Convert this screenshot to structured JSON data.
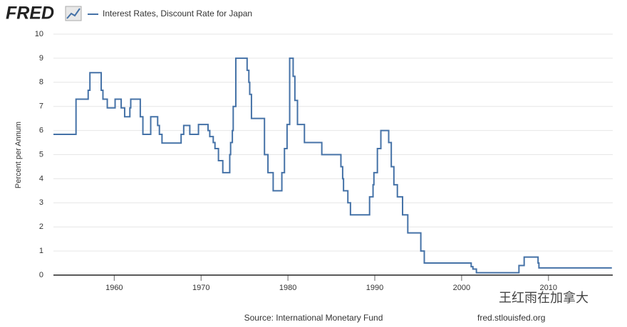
{
  "header": {
    "logo": "FRED"
  },
  "chart_data": {
    "type": "step",
    "title": "Interest Rates, Discount Rate for Japan",
    "y_label": "Percent per Annum",
    "source": "Source: International Monetary Fund",
    "site": "fred.stlouisfed.org",
    "watermark": "王红雨在加拿大",
    "grid": true,
    "xlim": [
      1953,
      2017.4
    ],
    "ylim": [
      0,
      10
    ],
    "xticks": [
      1960,
      1970,
      1980,
      1990,
      2000,
      2010
    ],
    "yticks": [
      0,
      1,
      2,
      3,
      4,
      5,
      6,
      7,
      8,
      9,
      10
    ],
    "series": [
      {
        "name": "Interest Rates, Discount Rate for Japan",
        "color": "#4572a7",
        "x": [
          1953.0,
          1955.6,
          1957.0,
          1957.2,
          1958.5,
          1958.7,
          1959.2,
          1960.1,
          1960.8,
          1961.2,
          1961.8,
          1961.9,
          1963.0,
          1963.3,
          1964.2,
          1965.0,
          1965.2,
          1965.5,
          1967.7,
          1968.0,
          1968.7,
          1969.7,
          1970.8,
          1971.0,
          1971.4,
          1971.6,
          1972.0,
          1972.5,
          1973.3,
          1973.4,
          1973.6,
          1973.7,
          1974.0,
          1975.3,
          1975.5,
          1975.6,
          1975.8,
          1977.3,
          1977.7,
          1978.3,
          1979.3,
          1979.6,
          1979.9,
          1980.2,
          1980.6,
          1980.8,
          1981.1,
          1981.9,
          1983.9,
          1986.1,
          1986.3,
          1986.4,
          1986.9,
          1987.2,
          1989.4,
          1989.8,
          1989.9,
          1990.3,
          1990.7,
          1991.6,
          1991.9,
          1992.2,
          1992.6,
          1993.2,
          1993.8,
          1995.3,
          1995.7,
          2001.1,
          2001.3,
          2001.7,
          2006.6,
          2007.2,
          2008.8,
          2008.9,
          2017.3
        ],
        "values": [
          5.84,
          7.3,
          7.67,
          8.4,
          7.67,
          7.3,
          6.94,
          7.3,
          6.94,
          6.57,
          6.94,
          7.3,
          6.57,
          5.84,
          6.57,
          6.21,
          5.84,
          5.48,
          5.84,
          6.21,
          5.84,
          6.25,
          6.0,
          5.75,
          5.5,
          5.25,
          4.75,
          4.25,
          5.0,
          5.5,
          6.0,
          7.0,
          9.0,
          8.5,
          8.0,
          7.5,
          6.5,
          5.0,
          4.25,
          3.5,
          4.25,
          5.25,
          6.25,
          9.0,
          8.25,
          7.25,
          6.25,
          5.5,
          5.0,
          4.5,
          4.0,
          3.5,
          3.0,
          2.5,
          3.25,
          3.75,
          4.25,
          5.25,
          6.0,
          5.5,
          4.5,
          3.75,
          3.25,
          2.5,
          1.75,
          1.0,
          0.5,
          0.35,
          0.25,
          0.1,
          0.4,
          0.75,
          0.5,
          0.3,
          0.3
        ]
      }
    ]
  }
}
